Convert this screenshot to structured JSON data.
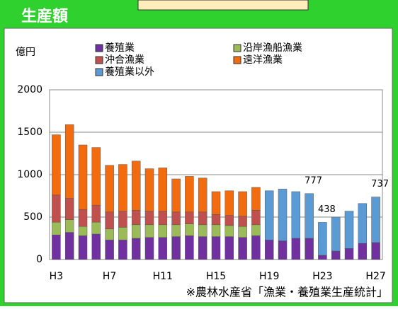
{
  "chart_data": {
    "type": "stacked_bar",
    "title": "生産額",
    "y_label": "億円",
    "source": "※農林水産省「漁業・養殖業生産統計」",
    "categories": [
      "H3",
      null,
      null,
      null,
      "H7",
      null,
      null,
      null,
      "H11",
      null,
      null,
      null,
      "H15",
      null,
      null,
      null,
      "H19",
      null,
      null,
      null,
      "H23",
      null,
      null,
      null,
      "H27"
    ],
    "series": [
      {
        "name": "養殖業",
        "color": "#7030a0",
        "values": [
          290,
          320,
          280,
          300,
          230,
          230,
          250,
          260,
          260,
          270,
          280,
          270,
          270,
          270,
          260,
          280,
          230,
          220,
          250,
          250,
          50,
          100,
          130,
          190,
          200
        ]
      },
      {
        "name": "沿岸漁船漁業",
        "color": "#9bbb59",
        "values": [
          150,
          150,
          110,
          140,
          130,
          150,
          160,
          150,
          150,
          140,
          140,
          140,
          140,
          130,
          130,
          130,
          null,
          null,
          null,
          null,
          null,
          null,
          null,
          null,
          null
        ]
      },
      {
        "name": "沖合漁業",
        "color": "#c0504d",
        "values": [
          320,
          250,
          200,
          200,
          200,
          190,
          170,
          160,
          160,
          150,
          140,
          150,
          120,
          120,
          120,
          170,
          null,
          null,
          null,
          null,
          null,
          null,
          null,
          null,
          null
        ]
      },
      {
        "name": "遠洋漁業",
        "color": "#f26b0f",
        "values": [
          710,
          870,
          760,
          680,
          550,
          550,
          580,
          500,
          510,
          390,
          420,
          400,
          270,
          290,
          290,
          270,
          null,
          null,
          null,
          null,
          null,
          null,
          null,
          null,
          null
        ]
      },
      {
        "name": "養殖業以外",
        "color": "#5b9bd5",
        "values": [
          null,
          null,
          null,
          null,
          null,
          null,
          null,
          null,
          null,
          null,
          null,
          null,
          null,
          null,
          null,
          null,
          580,
          610,
          550,
          527,
          388,
          400,
          440,
          470,
          537
        ]
      }
    ],
    "total_labels": [
      null,
      null,
      null,
      null,
      null,
      null,
      null,
      null,
      null,
      null,
      null,
      null,
      null,
      null,
      null,
      null,
      null,
      null,
      null,
      777,
      438,
      null,
      null,
      null,
      737
    ],
    "ylim": [
      0,
      2000
    ],
    "yticks": [
      0,
      500,
      1000,
      1500,
      2000
    ],
    "grid": true
  }
}
